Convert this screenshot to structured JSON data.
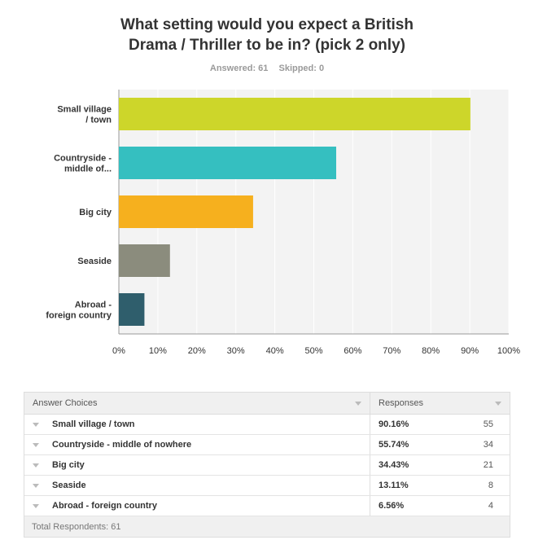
{
  "title_lines": [
    "What setting would you expect a British",
    "Drama / Thriller to be in? (pick 2 only)"
  ],
  "answered": "Answered: 61",
  "skipped": "Skipped: 0",
  "chart_data": {
    "type": "bar",
    "orientation": "horizontal",
    "categories": [
      [
        "Small village",
        "/ town"
      ],
      [
        "Countryside -",
        "middle of..."
      ],
      [
        "Big city"
      ],
      [
        "Seaside"
      ],
      [
        "Abroad -",
        "foreign country"
      ]
    ],
    "values": [
      90.16,
      55.74,
      34.43,
      13.11,
      6.56
    ],
    "colors": [
      "#cdd62a",
      "#35bfc0",
      "#f6b01e",
      "#8b8c7d",
      "#2f5e6c"
    ],
    "xlim": [
      0,
      100
    ],
    "ticks": [
      "0%",
      "10%",
      "20%",
      "30%",
      "40%",
      "50%",
      "60%",
      "70%",
      "80%",
      "90%",
      "100%"
    ],
    "grid": true
  },
  "table": {
    "header_choice": "Answer Choices",
    "header_responses": "Responses",
    "rows": [
      {
        "choice": "Small village / town",
        "pct": "90.16%",
        "count": "55"
      },
      {
        "choice": "Countryside - middle of nowhere",
        "pct": "55.74%",
        "count": "34"
      },
      {
        "choice": "Big city",
        "pct": "34.43%",
        "count": "21"
      },
      {
        "choice": "Seaside",
        "pct": "13.11%",
        "count": "8"
      },
      {
        "choice": "Abroad - foreign country",
        "pct": "6.56%",
        "count": "4"
      }
    ],
    "footer": "Total Respondents: 61"
  }
}
